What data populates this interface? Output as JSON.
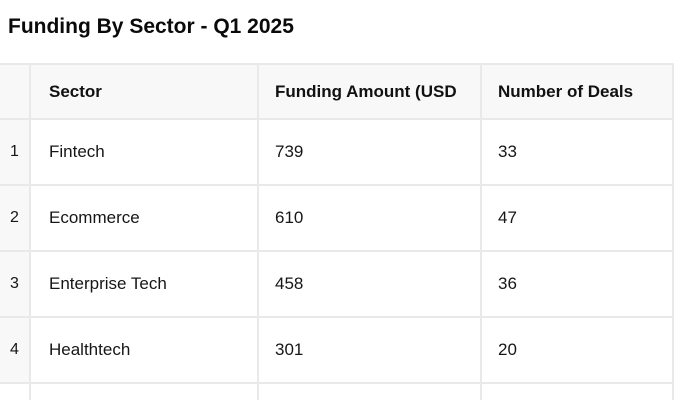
{
  "title": "Funding By Sector - Q1 2025",
  "table": {
    "columns": [
      {
        "label": ""
      },
      {
        "label": "Sector"
      },
      {
        "label": "Funding Amount (USD"
      },
      {
        "label": "Number of Deals"
      }
    ],
    "rows": [
      {
        "num": "1",
        "sector": "Fintech",
        "funding": "739",
        "deals": "33"
      },
      {
        "num": "2",
        "sector": "Ecommerce",
        "funding": "610",
        "deals": "47"
      },
      {
        "num": "3",
        "sector": "Enterprise Tech",
        "funding": "458",
        "deals": "36"
      },
      {
        "num": "4",
        "sector": "Healthtech",
        "funding": "301",
        "deals": "20"
      }
    ]
  },
  "colors": {
    "background": "#ffffff",
    "header_background": "#f8f8f8",
    "row_number_background": "#f8f8f8",
    "grid_border": "#e9e9e9",
    "text": "#161616",
    "title_text": "#0a0a0a"
  },
  "chart_data": {
    "type": "table",
    "title": "Funding By Sector - Q1 2025",
    "columns": [
      "Sector",
      "Funding Amount (USD",
      "Number of Deals"
    ],
    "categories": [
      "Fintech",
      "Ecommerce",
      "Enterprise Tech",
      "Healthtech"
    ],
    "series": [
      {
        "name": "Funding Amount (USD",
        "values": [
          739,
          610,
          458,
          301
        ]
      },
      {
        "name": "Number of Deals",
        "values": [
          33,
          47,
          36,
          20
        ]
      }
    ]
  }
}
